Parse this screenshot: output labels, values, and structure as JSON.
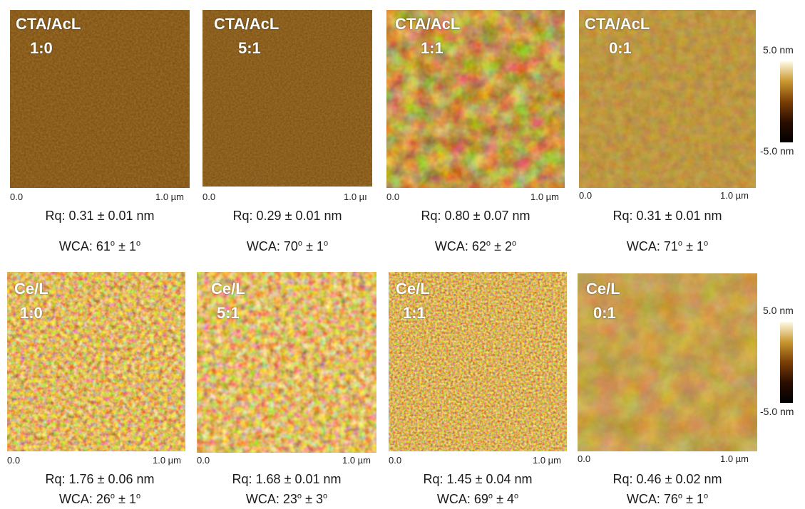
{
  "rows": [
    {
      "panels": [
        {
          "title": "CTA/AcL",
          "ratio": "1:0",
          "axis_start": "0.0",
          "axis_end": "1.0 µm",
          "rq": "0.31 ± 0.01 nm",
          "wca_value": "61",
          "wca_err": "1",
          "texture": "smooth-fine"
        },
        {
          "title": "CTA/AcL",
          "ratio": "5:1",
          "axis_start": "0.0",
          "axis_end": "1.0 µı",
          "rq": "0.29 ± 0.01 nm",
          "wca_value": "70",
          "wca_err": "1",
          "texture": "smooth-fine"
        },
        {
          "title": "CTA/AcL",
          "ratio": "1:1",
          "axis_start": "0.0",
          "axis_end": "1.0 µm",
          "rq": "0.80 ± 0.07 nm",
          "wca_value": "62",
          "wca_err": "2",
          "texture": "blotchy"
        },
        {
          "title": "CTA/AcL",
          "ratio": "0:1",
          "axis_start": "0.0",
          "axis_end": "1.0 µm",
          "rq": "0.31 ± 0.01 nm",
          "wca_value": "71",
          "wca_err": "1",
          "texture": "smooth-mottled"
        }
      ],
      "colorbar": {
        "max": "5.0 nm",
        "min": "-5.0 nm"
      }
    },
    {
      "panels": [
        {
          "title": "Ce/L",
          "ratio": "1:0",
          "axis_start": "0.0",
          "axis_end": "1.0 µm",
          "rq": "1.76 ±  0.06 nm",
          "wca_value": "26",
          "wca_err": "1",
          "texture": "grainy-bright"
        },
        {
          "title": "Ce/L",
          "ratio": "5:1",
          "axis_start": "0.0",
          "axis_end": "1.0 µm",
          "rq": "1.68 ± 0.01 nm",
          "wca_value": "23",
          "wca_err": "3",
          "texture": "grainy-coarse"
        },
        {
          "title": "Ce/L",
          "ratio": "1:1",
          "axis_start": "0.0",
          "axis_end": "1.0 µm",
          "rq": "1.45 ± 0.04 nm",
          "wca_value": "69",
          "wca_err": "4",
          "texture": "grainy-fine"
        },
        {
          "title": "Ce/L",
          "ratio": "0:1",
          "axis_start": "0.0",
          "axis_end": "1.0 µm",
          "rq": "0.46 ± 0.02 nm",
          "wca_value": "76",
          "wca_err": "1",
          "texture": "smooth-mottled"
        }
      ],
      "colorbar": {
        "max": "5.0 nm",
        "min": "-5.0 nm"
      }
    }
  ],
  "wca_label": "WCA:",
  "degree_symbol": "o",
  "pm_symbol": "±",
  "colors": {
    "dark": "#2a1000",
    "mid": "#8a5512",
    "light": "#f6e2a0"
  }
}
